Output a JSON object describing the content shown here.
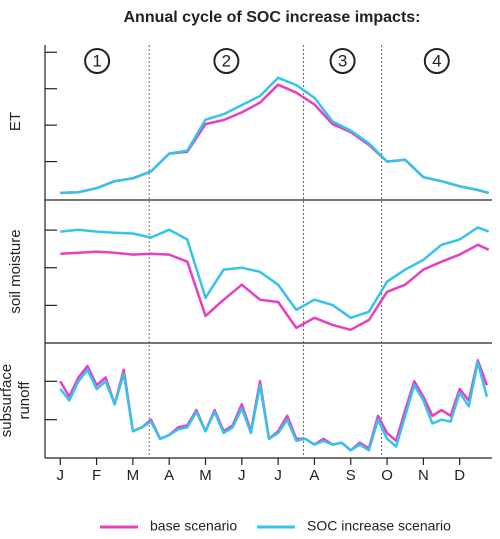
{
  "title": "Annual cycle of SOC increase impacts:",
  "dividers": [
    2.45,
    6.7,
    8.85
  ],
  "chart_data": [
    {
      "type": "line",
      "ylabel": [
        "ET"
      ],
      "annotations": [
        "1",
        "2",
        "3",
        "4"
      ],
      "xlim": [
        -0.42,
        11.89
      ],
      "ylim": [
        0,
        4.2
      ],
      "yticks": [
        1,
        2,
        3,
        4
      ],
      "x": [
        0,
        0.5,
        1,
        1.5,
        2,
        2.5,
        3,
        3.5,
        4,
        4.5,
        5,
        5.5,
        6,
        6.5,
        7,
        7.5,
        8,
        8.5,
        9,
        9.5,
        10,
        10.5,
        11,
        11.5,
        11.8
      ],
      "series": [
        {
          "name": "base scenario",
          "color": "#e83ebf",
          "values": [
            0.14,
            0.16,
            0.27,
            0.46,
            0.54,
            0.73,
            1.22,
            1.27,
            2.03,
            2.14,
            2.35,
            2.62,
            3.11,
            2.89,
            2.57,
            2.03,
            1.81,
            1.46,
            1.0,
            1.05,
            0.57,
            0.46,
            0.32,
            0.22,
            0.14
          ]
        },
        {
          "name": "SOC increase scenario",
          "color": "#33c3ee",
          "values": [
            0.14,
            0.16,
            0.27,
            0.46,
            0.54,
            0.73,
            1.22,
            1.3,
            2.15,
            2.3,
            2.55,
            2.8,
            3.3,
            3.1,
            2.75,
            2.1,
            1.85,
            1.5,
            1.0,
            1.05,
            0.57,
            0.46,
            0.32,
            0.22,
            0.14
          ]
        }
      ]
    },
    {
      "type": "line",
      "ylabel": [
        "soil moisture"
      ],
      "xlim": [
        -0.42,
        11.89
      ],
      "ylim": [
        0,
        3.8
      ],
      "yticks": [
        1,
        2,
        3
      ],
      "x": [
        0,
        0.5,
        1,
        1.5,
        2,
        2.5,
        3,
        3.5,
        4,
        4.5,
        5,
        5.5,
        6,
        6.5,
        7,
        7.5,
        8,
        8.5,
        9,
        9.5,
        10,
        10.5,
        11,
        11.5,
        11.8
      ],
      "series": [
        {
          "name": "base scenario",
          "color": "#e83ebf",
          "values": [
            2.37,
            2.4,
            2.43,
            2.4,
            2.35,
            2.37,
            2.35,
            2.16,
            0.72,
            1.15,
            1.55,
            1.15,
            1.09,
            0.4,
            0.67,
            0.48,
            0.35,
            0.61,
            1.36,
            1.55,
            1.95,
            2.16,
            2.35,
            2.61,
            2.48
          ]
        },
        {
          "name": "SOC increase scenario",
          "color": "#33c3ee",
          "values": [
            2.96,
            3.01,
            2.96,
            2.93,
            2.91,
            2.8,
            3.01,
            2.75,
            1.2,
            1.95,
            2.0,
            1.89,
            1.55,
            0.88,
            1.15,
            1.01,
            0.67,
            0.83,
            1.63,
            1.95,
            2.21,
            2.61,
            2.75,
            3.07,
            2.96
          ]
        }
      ]
    },
    {
      "type": "line",
      "ylabel": [
        "subsurface",
        "runoff"
      ],
      "xlim": [
        -0.42,
        11.89
      ],
      "ylim": [
        0,
        3
      ],
      "yticks": [
        1,
        2
      ],
      "xticks": [
        {
          "value": 0,
          "label": "J"
        },
        {
          "value": 1,
          "label": "F"
        },
        {
          "value": 2,
          "label": "M"
        },
        {
          "value": 3,
          "label": "A"
        },
        {
          "value": 4,
          "label": "M"
        },
        {
          "value": 5,
          "label": "J"
        },
        {
          "value": 6,
          "label": "J"
        },
        {
          "value": 7,
          "label": "A"
        },
        {
          "value": 8,
          "label": "S"
        },
        {
          "value": 9,
          "label": "O"
        },
        {
          "value": 10,
          "label": "N"
        },
        {
          "value": 11,
          "label": "D"
        }
      ],
      "x": [
        0,
        0.25,
        0.5,
        0.75,
        1,
        1.25,
        1.5,
        1.75,
        2,
        2.25,
        2.5,
        2.75,
        3,
        3.25,
        3.5,
        3.75,
        4,
        4.25,
        4.5,
        4.75,
        5,
        5.25,
        5.5,
        5.75,
        6,
        6.25,
        6.5,
        6.75,
        7,
        7.25,
        7.5,
        7.75,
        8,
        8.25,
        8.5,
        8.75,
        9,
        9.25,
        9.5,
        9.75,
        10,
        10.25,
        10.5,
        10.75,
        11,
        11.25,
        11.5,
        11.75
      ],
      "series": [
        {
          "name": "base scenario",
          "color": "#e83ebf",
          "values": [
            2.0,
            1.6,
            2.1,
            2.4,
            1.9,
            2.1,
            1.4,
            2.3,
            0.7,
            0.8,
            1.0,
            0.5,
            0.6,
            0.8,
            0.85,
            1.25,
            0.7,
            1.25,
            0.7,
            0.85,
            1.4,
            0.7,
            2.0,
            0.5,
            0.7,
            1.1,
            0.5,
            0.5,
            0.35,
            0.5,
            0.35,
            0.4,
            0.2,
            0.4,
            0.25,
            1.1,
            0.65,
            0.45,
            1.25,
            2.0,
            1.6,
            1.1,
            1.25,
            1.1,
            1.8,
            1.5,
            2.55,
            1.9
          ]
        },
        {
          "name": "SOC increase scenario",
          "color": "#33c3ee",
          "values": [
            1.8,
            1.5,
            2.0,
            2.3,
            1.8,
            2.0,
            1.4,
            2.2,
            0.7,
            0.8,
            0.95,
            0.5,
            0.6,
            0.75,
            0.8,
            1.2,
            0.7,
            1.2,
            0.65,
            0.8,
            1.3,
            0.65,
            1.9,
            0.5,
            0.65,
            1.0,
            0.45,
            0.5,
            0.35,
            0.45,
            0.35,
            0.4,
            0.2,
            0.35,
            0.2,
            1.0,
            0.5,
            0.3,
            1.1,
            1.9,
            1.5,
            0.9,
            1.0,
            0.95,
            1.7,
            1.35,
            2.5,
            1.6
          ]
        }
      ]
    }
  ]
}
